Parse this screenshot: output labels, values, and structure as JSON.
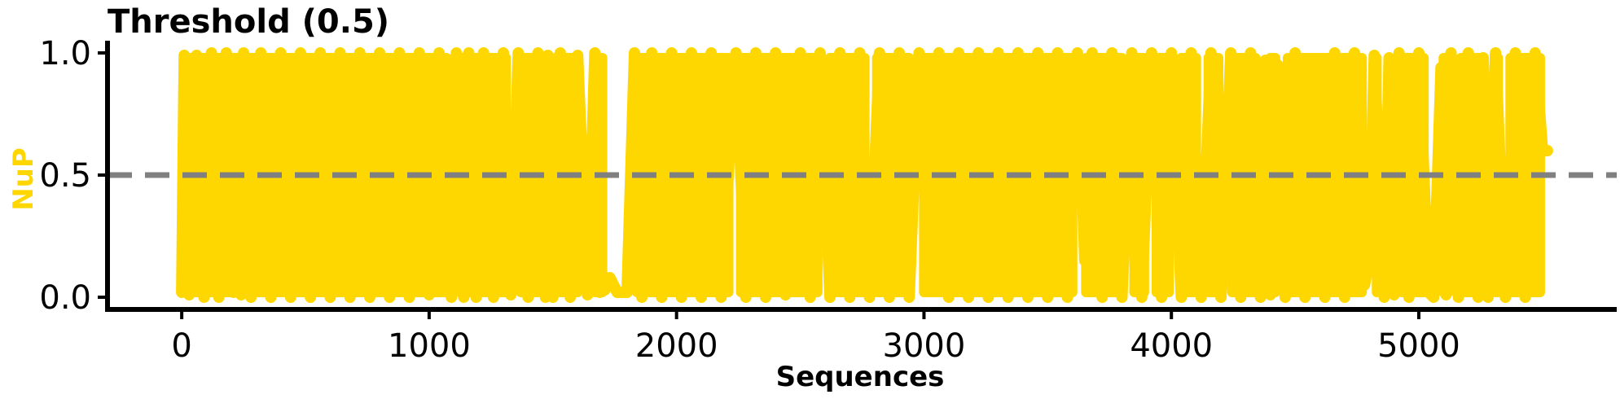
{
  "chart_data": {
    "type": "line",
    "title": "Threshold (0.5)",
    "xlabel": "Sequences",
    "ylabel": "NuP",
    "xlim": [
      -300,
      5800
    ],
    "ylim": [
      -0.05,
      1.05
    ],
    "x_ticks": [
      0,
      1000,
      2000,
      3000,
      4000,
      5000
    ],
    "x_tick_labels": [
      "0",
      "1000",
      "2000",
      "3000",
      "4000",
      "5000"
    ],
    "y_ticks": [
      0.0,
      0.5,
      1.0
    ],
    "y_tick_labels": [
      "0.0",
      "0.5",
      "1.0"
    ],
    "threshold": 0.5,
    "colors": {
      "series": "#FFD700",
      "ylabel": "#FFD700",
      "threshold": "#808080",
      "axis": "#000000"
    },
    "grid": false,
    "series": [
      {
        "points": [
          [
            0,
            0.02
          ],
          [
            10,
            0.99
          ],
          [
            30,
            0.01
          ],
          [
            60,
            0.99
          ],
          [
            90,
            0.0
          ],
          [
            120,
            1.0
          ],
          [
            150,
            0.0
          ],
          [
            180,
            1.0
          ],
          [
            210,
            0.02
          ],
          [
            230,
            0.3
          ],
          [
            240,
            0.01
          ],
          [
            250,
            1.0
          ],
          [
            280,
            0.0
          ],
          [
            320,
            1.0
          ],
          [
            360,
            0.0
          ],
          [
            400,
            1.0
          ],
          [
            440,
            0.0
          ],
          [
            480,
            1.0
          ],
          [
            520,
            0.0
          ],
          [
            560,
            1.0
          ],
          [
            600,
            0.0
          ],
          [
            640,
            1.0
          ],
          [
            680,
            0.0
          ],
          [
            720,
            1.0
          ],
          [
            760,
            0.0
          ],
          [
            800,
            1.0
          ],
          [
            840,
            0.0
          ],
          [
            880,
            1.0
          ],
          [
            920,
            0.0
          ],
          [
            960,
            1.0
          ],
          [
            1000,
            0.01
          ],
          [
            1040,
            1.0
          ],
          [
            1050,
            0.19
          ],
          [
            1070,
            0.18
          ],
          [
            1090,
            0.0
          ],
          [
            1110,
            1.0
          ],
          [
            1140,
            0.0
          ],
          [
            1160,
            1.0
          ],
          [
            1190,
            0.0
          ],
          [
            1220,
            1.0
          ],
          [
            1260,
            0.0
          ],
          [
            1300,
            1.0
          ],
          [
            1330,
            0.01
          ],
          [
            1360,
            1.0
          ],
          [
            1400,
            0.0
          ],
          [
            1440,
            1.0
          ],
          [
            1470,
            0.0
          ],
          [
            1480,
            0.99
          ],
          [
            1500,
            0.0
          ],
          [
            1530,
            1.0
          ],
          [
            1570,
            0.0
          ],
          [
            1600,
            0.99
          ],
          [
            1640,
            0.01
          ],
          [
            1670,
            1.0
          ],
          [
            1690,
            0.02
          ],
          [
            1710,
            0.03
          ],
          [
            1730,
            0.08
          ],
          [
            1760,
            0.02
          ],
          [
            1800,
            0.02
          ],
          [
            1830,
            1.0
          ],
          [
            1860,
            0.0
          ],
          [
            1900,
            1.0
          ],
          [
            1940,
            0.0
          ],
          [
            1980,
            1.0
          ],
          [
            2020,
            0.0
          ],
          [
            2060,
            1.0
          ],
          [
            2100,
            0.0
          ],
          [
            2140,
            1.0
          ],
          [
            2180,
            0.0
          ],
          [
            2220,
            0.7
          ],
          [
            2240,
            1.0
          ],
          [
            2280,
            0.0
          ],
          [
            2320,
            1.0
          ],
          [
            2360,
            0.0
          ],
          [
            2400,
            1.0
          ],
          [
            2440,
            0.01
          ],
          [
            2480,
            0.75
          ],
          [
            2500,
            1.0
          ],
          [
            2540,
            0.0
          ],
          [
            2580,
            1.0
          ],
          [
            2620,
            0.0
          ],
          [
            2660,
            1.0
          ],
          [
            2700,
            0.0
          ],
          [
            2740,
            1.0
          ],
          [
            2780,
            0.0
          ],
          [
            2820,
            1.0
          ],
          [
            2860,
            0.0
          ],
          [
            2900,
            1.0
          ],
          [
            2940,
            0.0
          ],
          [
            2980,
            1.0
          ],
          [
            3020,
            0.12
          ],
          [
            3060,
            1.0
          ],
          [
            3100,
            0.0
          ],
          [
            3140,
            1.0
          ],
          [
            3180,
            0.0
          ],
          [
            3220,
            1.0
          ],
          [
            3260,
            0.0
          ],
          [
            3300,
            1.0
          ],
          [
            3340,
            0.0
          ],
          [
            3380,
            1.0
          ],
          [
            3420,
            0.0
          ],
          [
            3460,
            1.0
          ],
          [
            3500,
            0.0
          ],
          [
            3540,
            1.0
          ],
          [
            3580,
            0.0
          ],
          [
            3620,
            1.0
          ],
          [
            3650,
            0.15
          ],
          [
            3680,
            1.0
          ],
          [
            3720,
            0.0
          ],
          [
            3760,
            1.0
          ],
          [
            3800,
            0.0
          ],
          [
            3840,
            1.0
          ],
          [
            3880,
            0.0
          ],
          [
            3920,
            1.0
          ],
          [
            3960,
            0.0
          ],
          [
            4000,
            1.0
          ],
          [
            4040,
            0.0
          ],
          [
            4080,
            1.0
          ],
          [
            4120,
            0.0
          ],
          [
            4160,
            1.0
          ],
          [
            4200,
            0.0
          ],
          [
            4240,
            1.0
          ],
          [
            4280,
            0.0
          ],
          [
            4320,
            1.0
          ],
          [
            4360,
            0.0
          ],
          [
            4380,
            0.97
          ],
          [
            4400,
            0.01
          ],
          [
            4430,
            0.95
          ],
          [
            4460,
            0.0
          ],
          [
            4500,
            1.0
          ],
          [
            4540,
            0.0
          ],
          [
            4580,
            0.97
          ],
          [
            4620,
            0.0
          ],
          [
            4660,
            1.0
          ],
          [
            4700,
            0.0
          ],
          [
            4740,
            1.0
          ],
          [
            4780,
            0.05
          ],
          [
            4800,
            0.15
          ],
          [
            4820,
            0.99
          ],
          [
            4860,
            0.0
          ],
          [
            4880,
            0.98
          ],
          [
            4900,
            0.01
          ],
          [
            4920,
            1.0
          ],
          [
            4960,
            0.0
          ],
          [
            5000,
            1.0
          ],
          [
            5040,
            0.02
          ],
          [
            5060,
            0.0
          ],
          [
            5090,
            0.94
          ],
          [
            5110,
            0.01
          ],
          [
            5130,
            1.0
          ],
          [
            5160,
            0.0
          ],
          [
            5200,
            1.0
          ],
          [
            5240,
            0.0
          ],
          [
            5260,
            0.98
          ],
          [
            5280,
            0.0
          ],
          [
            5310,
            1.0
          ],
          [
            5350,
            0.0
          ],
          [
            5390,
            1.0
          ],
          [
            5430,
            0.0
          ],
          [
            5470,
            1.0
          ],
          [
            5500,
            0.6
          ],
          [
            5520,
            0.6
          ]
        ],
        "fill_bands": [
          [
            -5,
            1090
          ],
          [
            1105,
            1330
          ],
          [
            1350,
            1470
          ],
          [
            1490,
            1620
          ],
          [
            1650,
            1720
          ],
          [
            1820,
            2230
          ],
          [
            2240,
            2590
          ],
          [
            2600,
            2780
          ],
          [
            2790,
            2960
          ],
          [
            2980,
            3620
          ],
          [
            3635,
            3820
          ],
          [
            3830,
            3910
          ],
          [
            3920,
            4010
          ],
          [
            4020,
            4120
          ],
          [
            4130,
            4210
          ],
          [
            4225,
            4360
          ],
          [
            4380,
            4440
          ],
          [
            4450,
            4790
          ],
          [
            4810,
            4850
          ],
          [
            4860,
            4890
          ],
          [
            4910,
            5040
          ],
          [
            5080,
            5140
          ],
          [
            5150,
            5270
          ],
          [
            5290,
            5340
          ],
          [
            5350,
            5510
          ]
        ]
      }
    ]
  }
}
